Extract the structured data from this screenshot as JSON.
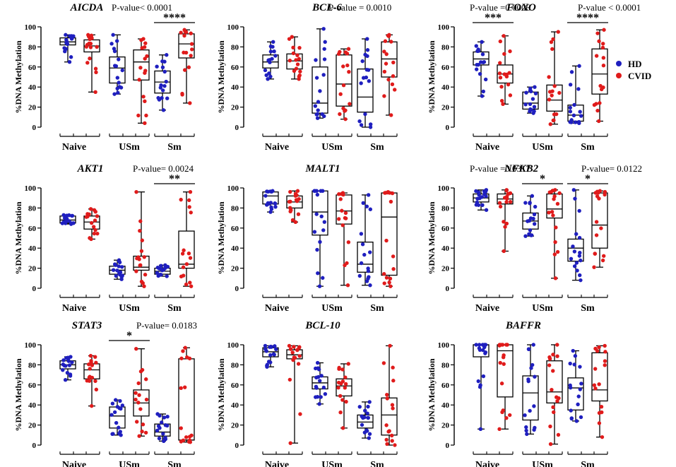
{
  "chart_data": {
    "type": "box",
    "ylabel": "%DNA Methylation",
    "ylim": [
      0,
      100
    ],
    "yticks": [
      0,
      20,
      40,
      60,
      80,
      100
    ],
    "categories": [
      "Naive",
      "USm",
      "Sm"
    ],
    "legend": [
      {
        "label": "HD",
        "color": "#1f1fbf"
      },
      {
        "label": "CVID",
        "color": "#e01b1b"
      }
    ],
    "panels": [
      {
        "gene": "AICDA",
        "annotations": [
          {
            "text": "P-value< 0.0001"
          }
        ],
        "brackets": [
          {
            "group": 2,
            "stars": "****"
          }
        ],
        "boxes": [
          {
            "group": 0,
            "series": "HD",
            "min": 65,
            "q1": 82,
            "median": 85,
            "q3": 89,
            "max": 92
          },
          {
            "group": 0,
            "series": "CVID",
            "min": 35,
            "q1": 75,
            "median": 81,
            "q3": 87,
            "max": 92
          },
          {
            "group": 1,
            "series": "HD",
            "min": 33,
            "q1": 44,
            "median": 59,
            "q3": 70,
            "max": 92
          },
          {
            "group": 1,
            "series": "CVID",
            "min": 4,
            "q1": 47,
            "median": 65,
            "q3": 77,
            "max": 88
          },
          {
            "group": 2,
            "series": "HD",
            "min": 17,
            "q1": 34,
            "median": 45,
            "q3": 56,
            "max": 72
          },
          {
            "group": 2,
            "series": "CVID",
            "min": 24,
            "q1": 69,
            "median": 83,
            "q3": 93,
            "max": 97
          }
        ]
      },
      {
        "gene": "BCL-6",
        "annotations": [
          {
            "text": "P-value = 0.0010"
          }
        ],
        "brackets": [],
        "boxes": [
          {
            "group": 0,
            "series": "HD",
            "min": 48,
            "q1": 59,
            "median": 65,
            "q3": 72,
            "max": 85
          },
          {
            "group": 0,
            "series": "CVID",
            "min": 48,
            "q1": 58,
            "median": 66,
            "q3": 73,
            "max": 90
          },
          {
            "group": 1,
            "series": "HD",
            "min": 9,
            "q1": 14,
            "median": 24,
            "q3": 60,
            "max": 98
          },
          {
            "group": 1,
            "series": "CVID",
            "min": 8,
            "q1": 21,
            "median": 43,
            "q3": 72,
            "max": 78
          },
          {
            "group": 2,
            "series": "HD",
            "min": 0,
            "q1": 15,
            "median": 30,
            "q3": 58,
            "max": 88
          },
          {
            "group": 2,
            "series": "CVID",
            "min": 12,
            "q1": 50,
            "median": 68,
            "q3": 85,
            "max": 92
          }
        ]
      },
      {
        "gene": "FOXO",
        "annotations": [
          {
            "text": "P-value =0.0006"
          },
          {
            "text": "P-value < 0.0001"
          }
        ],
        "brackets": [
          {
            "group": 0,
            "stars": "***"
          },
          {
            "group": 2,
            "stars": "****"
          }
        ],
        "boxes": [
          {
            "group": 0,
            "series": "HD",
            "min": 31,
            "q1": 62,
            "median": 68,
            "q3": 75,
            "max": 85
          },
          {
            "group": 0,
            "series": "CVID",
            "min": 23,
            "q1": 44,
            "median": 53,
            "q3": 62,
            "max": 91
          },
          {
            "group": 1,
            "series": "HD",
            "min": 14,
            "q1": 18,
            "median": 24,
            "q3": 35,
            "max": 40
          },
          {
            "group": 1,
            "series": "CVID",
            "min": 3,
            "q1": 16,
            "median": 27,
            "q3": 42,
            "max": 95
          },
          {
            "group": 2,
            "series": "HD",
            "min": 4,
            "q1": 6,
            "median": 12,
            "q3": 22,
            "max": 61
          },
          {
            "group": 2,
            "series": "CVID",
            "min": 6,
            "q1": 33,
            "median": 53,
            "q3": 78,
            "max": 97
          }
        ]
      },
      {
        "gene": "AKT1",
        "annotations": [
          {
            "text": "P-value= 0.0024"
          }
        ],
        "brackets": [
          {
            "group": 2,
            "stars": "**"
          }
        ],
        "boxes": [
          {
            "group": 0,
            "series": "HD",
            "min": 64,
            "q1": 65,
            "median": 68,
            "q3": 72,
            "max": 73
          },
          {
            "group": 0,
            "series": "CVID",
            "min": 49,
            "q1": 59,
            "median": 66,
            "q3": 72,
            "max": 79
          },
          {
            "group": 1,
            "series": "HD",
            "min": 9,
            "q1": 14,
            "median": 18,
            "q3": 22,
            "max": 28
          },
          {
            "group": 1,
            "series": "CVID",
            "min": 2,
            "q1": 18,
            "median": 21,
            "q3": 32,
            "max": 96
          },
          {
            "group": 2,
            "series": "HD",
            "min": 12,
            "q1": 14,
            "median": 17,
            "q3": 20,
            "max": 23
          },
          {
            "group": 2,
            "series": "CVID",
            "min": 2,
            "q1": 20,
            "median": 24,
            "q3": 57,
            "max": 96
          }
        ]
      },
      {
        "gene": "MALT1",
        "annotations": [],
        "brackets": [],
        "boxes": [
          {
            "group": 0,
            "series": "HD",
            "min": 76,
            "q1": 84,
            "median": 92,
            "q3": 96,
            "max": 97
          },
          {
            "group": 0,
            "series": "CVID",
            "min": 66,
            "q1": 80,
            "median": 86,
            "q3": 92,
            "max": 97
          },
          {
            "group": 1,
            "series": "HD",
            "min": 2,
            "q1": 53,
            "median": 76,
            "q3": 97,
            "max": 97
          },
          {
            "group": 1,
            "series": "CVID",
            "min": 3,
            "q1": 64,
            "median": 77,
            "q3": 93,
            "max": 95
          },
          {
            "group": 2,
            "series": "HD",
            "min": 3,
            "q1": 16,
            "median": 24,
            "q3": 46,
            "max": 93
          },
          {
            "group": 2,
            "series": "CVID",
            "min": 2,
            "q1": 13,
            "median": 71,
            "q3": 95,
            "max": 96
          }
        ]
      },
      {
        "gene": "NFKB2",
        "annotations": [
          {
            "text": "P-value =0.0317"
          },
          {
            "text": "P-value= 0.0122"
          }
        ],
        "brackets": [
          {
            "group": 1,
            "stars": "*"
          },
          {
            "group": 2,
            "stars": "*"
          }
        ],
        "boxes": [
          {
            "group": 0,
            "series": "HD",
            "min": 78,
            "q1": 86,
            "median": 90,
            "q3": 94,
            "max": 98
          },
          {
            "group": 0,
            "series": "CVID",
            "min": 37,
            "q1": 84,
            "median": 89,
            "q3": 94,
            "max": 98
          },
          {
            "group": 1,
            "series": "HD",
            "min": 52,
            "q1": 59,
            "median": 67,
            "q3": 75,
            "max": 92
          },
          {
            "group": 1,
            "series": "CVID",
            "min": 10,
            "q1": 70,
            "median": 79,
            "q3": 94,
            "max": 98
          },
          {
            "group": 2,
            "series": "HD",
            "min": 8,
            "q1": 27,
            "median": 40,
            "q3": 49,
            "max": 98
          },
          {
            "group": 2,
            "series": "CVID",
            "min": 21,
            "q1": 40,
            "median": 63,
            "q3": 95,
            "max": 97
          }
        ]
      },
      {
        "gene": "STAT3",
        "annotations": [
          {
            "text": "P-value= 0.0183"
          }
        ],
        "brackets": [
          {
            "group": 1,
            "stars": "*"
          }
        ],
        "boxes": [
          {
            "group": 0,
            "series": "HD",
            "min": 65,
            "q1": 76,
            "median": 80,
            "q3": 84,
            "max": 88
          },
          {
            "group": 0,
            "series": "CVID",
            "min": 39,
            "q1": 66,
            "median": 75,
            "q3": 81,
            "max": 89
          },
          {
            "group": 1,
            "series": "HD",
            "min": 10,
            "q1": 17,
            "median": 29,
            "q3": 38,
            "max": 45
          },
          {
            "group": 1,
            "series": "CVID",
            "min": 9,
            "q1": 29,
            "median": 42,
            "q3": 55,
            "max": 96
          },
          {
            "group": 2,
            "series": "HD",
            "min": 4,
            "q1": 9,
            "median": 13,
            "q3": 21,
            "max": 31
          },
          {
            "group": 2,
            "series": "CVID",
            "min": 3,
            "q1": 5,
            "median": 5,
            "q3": 86,
            "max": 97
          }
        ]
      },
      {
        "gene": "BCL-10",
        "annotations": [],
        "brackets": [],
        "boxes": [
          {
            "group": 0,
            "series": "HD",
            "min": 78,
            "q1": 88,
            "median": 93,
            "q3": 97,
            "max": 99
          },
          {
            "group": 0,
            "series": "CVID",
            "min": 2,
            "q1": 86,
            "median": 90,
            "q3": 95,
            "max": 99
          },
          {
            "group": 1,
            "series": "HD",
            "min": 41,
            "q1": 56,
            "median": 62,
            "q3": 68,
            "max": 82
          },
          {
            "group": 1,
            "series": "CVID",
            "min": 17,
            "q1": 49,
            "median": 59,
            "q3": 66,
            "max": 81
          },
          {
            "group": 2,
            "series": "HD",
            "min": 7,
            "q1": 17,
            "median": 23,
            "q3": 30,
            "max": 43
          },
          {
            "group": 2,
            "series": "CVID",
            "min": 0,
            "q1": 10,
            "median": 30,
            "q3": 47,
            "max": 99
          }
        ]
      },
      {
        "gene": "BAFFR",
        "annotations": [],
        "brackets": [],
        "boxes": [
          {
            "group": 0,
            "series": "HD",
            "min": 16,
            "q1": 88,
            "median": 100,
            "q3": 100,
            "max": 100
          },
          {
            "group": 0,
            "series": "CVID",
            "min": 16,
            "q1": 48,
            "median": 94,
            "q3": 100,
            "max": 100
          },
          {
            "group": 1,
            "series": "HD",
            "min": 11,
            "q1": 25,
            "median": 52,
            "q3": 69,
            "max": 100
          },
          {
            "group": 1,
            "series": "CVID",
            "min": 1,
            "q1": 42,
            "median": 53,
            "q3": 84,
            "max": 100
          },
          {
            "group": 2,
            "series": "HD",
            "min": 24,
            "q1": 35,
            "median": 57,
            "q3": 67,
            "max": 94
          },
          {
            "group": 2,
            "series": "CVID",
            "min": 8,
            "q1": 44,
            "median": 55,
            "q3": 92,
            "max": 99
          }
        ]
      }
    ]
  }
}
